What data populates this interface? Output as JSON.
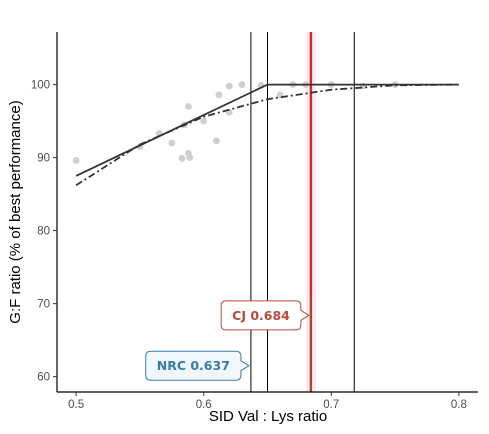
{
  "chart_data": {
    "type": "scatter",
    "xlabel": "SID Val : Lys ratio",
    "ylabel": "G:F ratio (% of best performance)",
    "xlim": [
      0.485,
      0.815
    ],
    "ylim": [
      57.9,
      107.2
    ],
    "x_ticks": [
      0.5,
      0.6,
      0.7,
      0.8
    ],
    "x_tick_labels": [
      "0.5",
      "0.6",
      "0.7",
      "0.8"
    ],
    "y_ticks": [
      60,
      70,
      80,
      90,
      100
    ],
    "y_tick_labels": [
      "60",
      "70",
      "80",
      "90",
      "100"
    ],
    "grid": false,
    "legend": "none",
    "points": [
      {
        "x": 0.5,
        "y": 89.6
      },
      {
        "x": 0.55,
        "y": 91.5
      },
      {
        "x": 0.565,
        "y": 93.3
      },
      {
        "x": 0.575,
        "y": 92.0
      },
      {
        "x": 0.583,
        "y": 89.9
      },
      {
        "x": 0.585,
        "y": 94.5
      },
      {
        "x": 0.588,
        "y": 97.0
      },
      {
        "x": 0.588,
        "y": 90.6
      },
      {
        "x": 0.589,
        "y": 90.0
      },
      {
        "x": 0.6,
        "y": 95.0
      },
      {
        "x": 0.61,
        "y": 92.3
      },
      {
        "x": 0.612,
        "y": 98.6
      },
      {
        "x": 0.62,
        "y": 96.2
      },
      {
        "x": 0.62,
        "y": 99.8
      },
      {
        "x": 0.63,
        "y": 100.0
      },
      {
        "x": 0.645,
        "y": 99.9
      },
      {
        "x": 0.66,
        "y": 98.6
      },
      {
        "x": 0.67,
        "y": 100.0
      },
      {
        "x": 0.68,
        "y": 100.0
      },
      {
        "x": 0.7,
        "y": 100.0
      },
      {
        "x": 0.725,
        "y": 99.8
      },
      {
        "x": 0.75,
        "y": 100.0
      }
    ],
    "series": [
      {
        "style": "solid",
        "x": [
          0.5,
          0.65,
          0.8
        ],
        "y": [
          87.5,
          100.0,
          100.0
        ]
      },
      {
        "style": "dashdot",
        "x": [
          0.5,
          0.55,
          0.6,
          0.65,
          0.7,
          0.75,
          0.8
        ],
        "y": [
          86.2,
          91.8,
          95.6,
          98.0,
          99.3,
          99.9,
          100.0
        ]
      }
    ],
    "vertical_lines": [
      {
        "x": 0.637,
        "color": "#000000"
      },
      {
        "x": 0.65,
        "color": "#000000"
      },
      {
        "x": 0.718,
        "color": "#000000"
      },
      {
        "x": 0.684,
        "color": "#d62728",
        "band": [
          0.68,
          0.688
        ]
      }
    ],
    "annotations": [
      {
        "text": "CJ 0.684",
        "x": 0.684,
        "y": 68.4,
        "side": "left",
        "color": "#b84a3e",
        "fill": "#ffffff",
        "border": "#b84a3e"
      },
      {
        "text": "NRC 0.637",
        "x": 0.637,
        "y": 61.5,
        "side": "left",
        "color": "#3a7ca5",
        "fill": "#f1f8fc",
        "border": "#3a7ca5"
      }
    ]
  }
}
